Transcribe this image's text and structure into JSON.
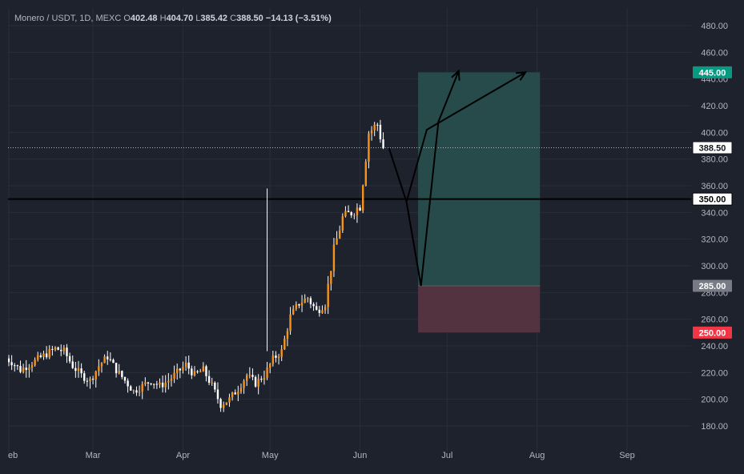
{
  "header": {
    "symbol": "Monero / USDT, 1D, MEXC",
    "open_label": "O",
    "open": "402.48",
    "high_label": "H",
    "high": "404.70",
    "low_label": "L",
    "low": "385.42",
    "close_label": "C",
    "close": "388.50",
    "change": "−14.13 (−3.51%)"
  },
  "price_labels": {
    "target": "445.00",
    "current": "388.50",
    "level": "350.00",
    "entry": "285.00",
    "stop": "250.00"
  },
  "colors": {
    "background": "#1e222d",
    "grid": "#2a2e39",
    "candle": "#f7931a",
    "wick": "#ffffff",
    "profit_zone": "#264b4a",
    "loss_zone": "#52333f",
    "target_badge": "#089981",
    "stop_badge": "#f23645",
    "entry_badge": "#787b86",
    "level_line": "#000000"
  },
  "chart_data": {
    "type": "candlestick",
    "y_axis": {
      "range": [
        170,
        490
      ],
      "ticks": [
        "180.00",
        "200.00",
        "220.00",
        "240.00",
        "260.00",
        "280.00",
        "300.00",
        "320.00",
        "340.00",
        "360.00",
        "380.00",
        "400.00",
        "420.00",
        "440.00",
        "460.00",
        "480.00"
      ]
    },
    "x_axis": {
      "ticks": [
        "eb",
        "Mar",
        "Apr",
        "May",
        "Jun",
        "Jul",
        "Aug",
        "Sep"
      ],
      "tick_dates": [
        "2024-02-01",
        "2024-03-01",
        "2024-04-01",
        "2024-05-01",
        "2024-06-01",
        "2024-07-01",
        "2024-08-01",
        "2024-09-01"
      ],
      "range": [
        "2024-01-31",
        "2024-09-30"
      ]
    },
    "grid": true,
    "price_close_path": [
      [
        "2024-01-31",
        232
      ],
      [
        "2024-02-03",
        228
      ],
      [
        "2024-02-06",
        222
      ],
      [
        "2024-02-09",
        226
      ],
      [
        "2024-02-12",
        230
      ],
      [
        "2024-02-15",
        234
      ],
      [
        "2024-02-18",
        238
      ],
      [
        "2024-02-21",
        236
      ],
      [
        "2024-02-24",
        225
      ],
      [
        "2024-02-27",
        218
      ],
      [
        "2024-03-01",
        214
      ],
      [
        "2024-03-04",
        225
      ],
      [
        "2024-03-07",
        232
      ],
      [
        "2024-03-10",
        222
      ],
      [
        "2024-03-13",
        214
      ],
      [
        "2024-03-16",
        206
      ],
      [
        "2024-03-19",
        210
      ],
      [
        "2024-03-22",
        214
      ],
      [
        "2024-03-25",
        210
      ],
      [
        "2024-03-28",
        214
      ],
      [
        "2024-03-31",
        220
      ],
      [
        "2024-04-03",
        226
      ],
      [
        "2024-04-06",
        218
      ],
      [
        "2024-04-09",
        222
      ],
      [
        "2024-04-12",
        210
      ],
      [
        "2024-04-15",
        196
      ],
      [
        "2024-04-18",
        200
      ],
      [
        "2024-04-21",
        208
      ],
      [
        "2024-04-24",
        218
      ],
      [
        "2024-04-27",
        212
      ],
      [
        "2024-04-30",
        218
      ],
      [
        "2024-05-03",
        230
      ],
      [
        "2024-05-06",
        236
      ],
      [
        "2024-05-09",
        262
      ],
      [
        "2024-05-12",
        272
      ],
      [
        "2024-05-15",
        276
      ],
      [
        "2024-05-18",
        266
      ],
      [
        "2024-05-21",
        272
      ],
      [
        "2024-05-24",
        312
      ],
      [
        "2024-05-27",
        336
      ],
      [
        "2024-05-30",
        340
      ],
      [
        "2024-06-02",
        345
      ],
      [
        "2024-06-05",
        400
      ],
      [
        "2024-06-08",
        406
      ],
      [
        "2024-06-10",
        388.5
      ]
    ],
    "drawings": {
      "horizontal_line": 350,
      "long_position": {
        "start": "2024-06-21",
        "end": "2024-08-02",
        "entry": 285,
        "target": 445,
        "stop": 250
      },
      "projection_path": [
        [
          "2024-06-11",
          388
        ],
        [
          "2024-06-17",
          348
        ],
        [
          "2024-06-22",
          285
        ],
        [
          "2024-06-28",
          408
        ],
        [
          "2024-07-05",
          446
        ]
      ],
      "projection_path_2": [
        [
          "2024-06-17",
          348
        ],
        [
          "2024-06-24",
          402
        ],
        [
          "2024-07-28",
          445
        ]
      ]
    }
  }
}
